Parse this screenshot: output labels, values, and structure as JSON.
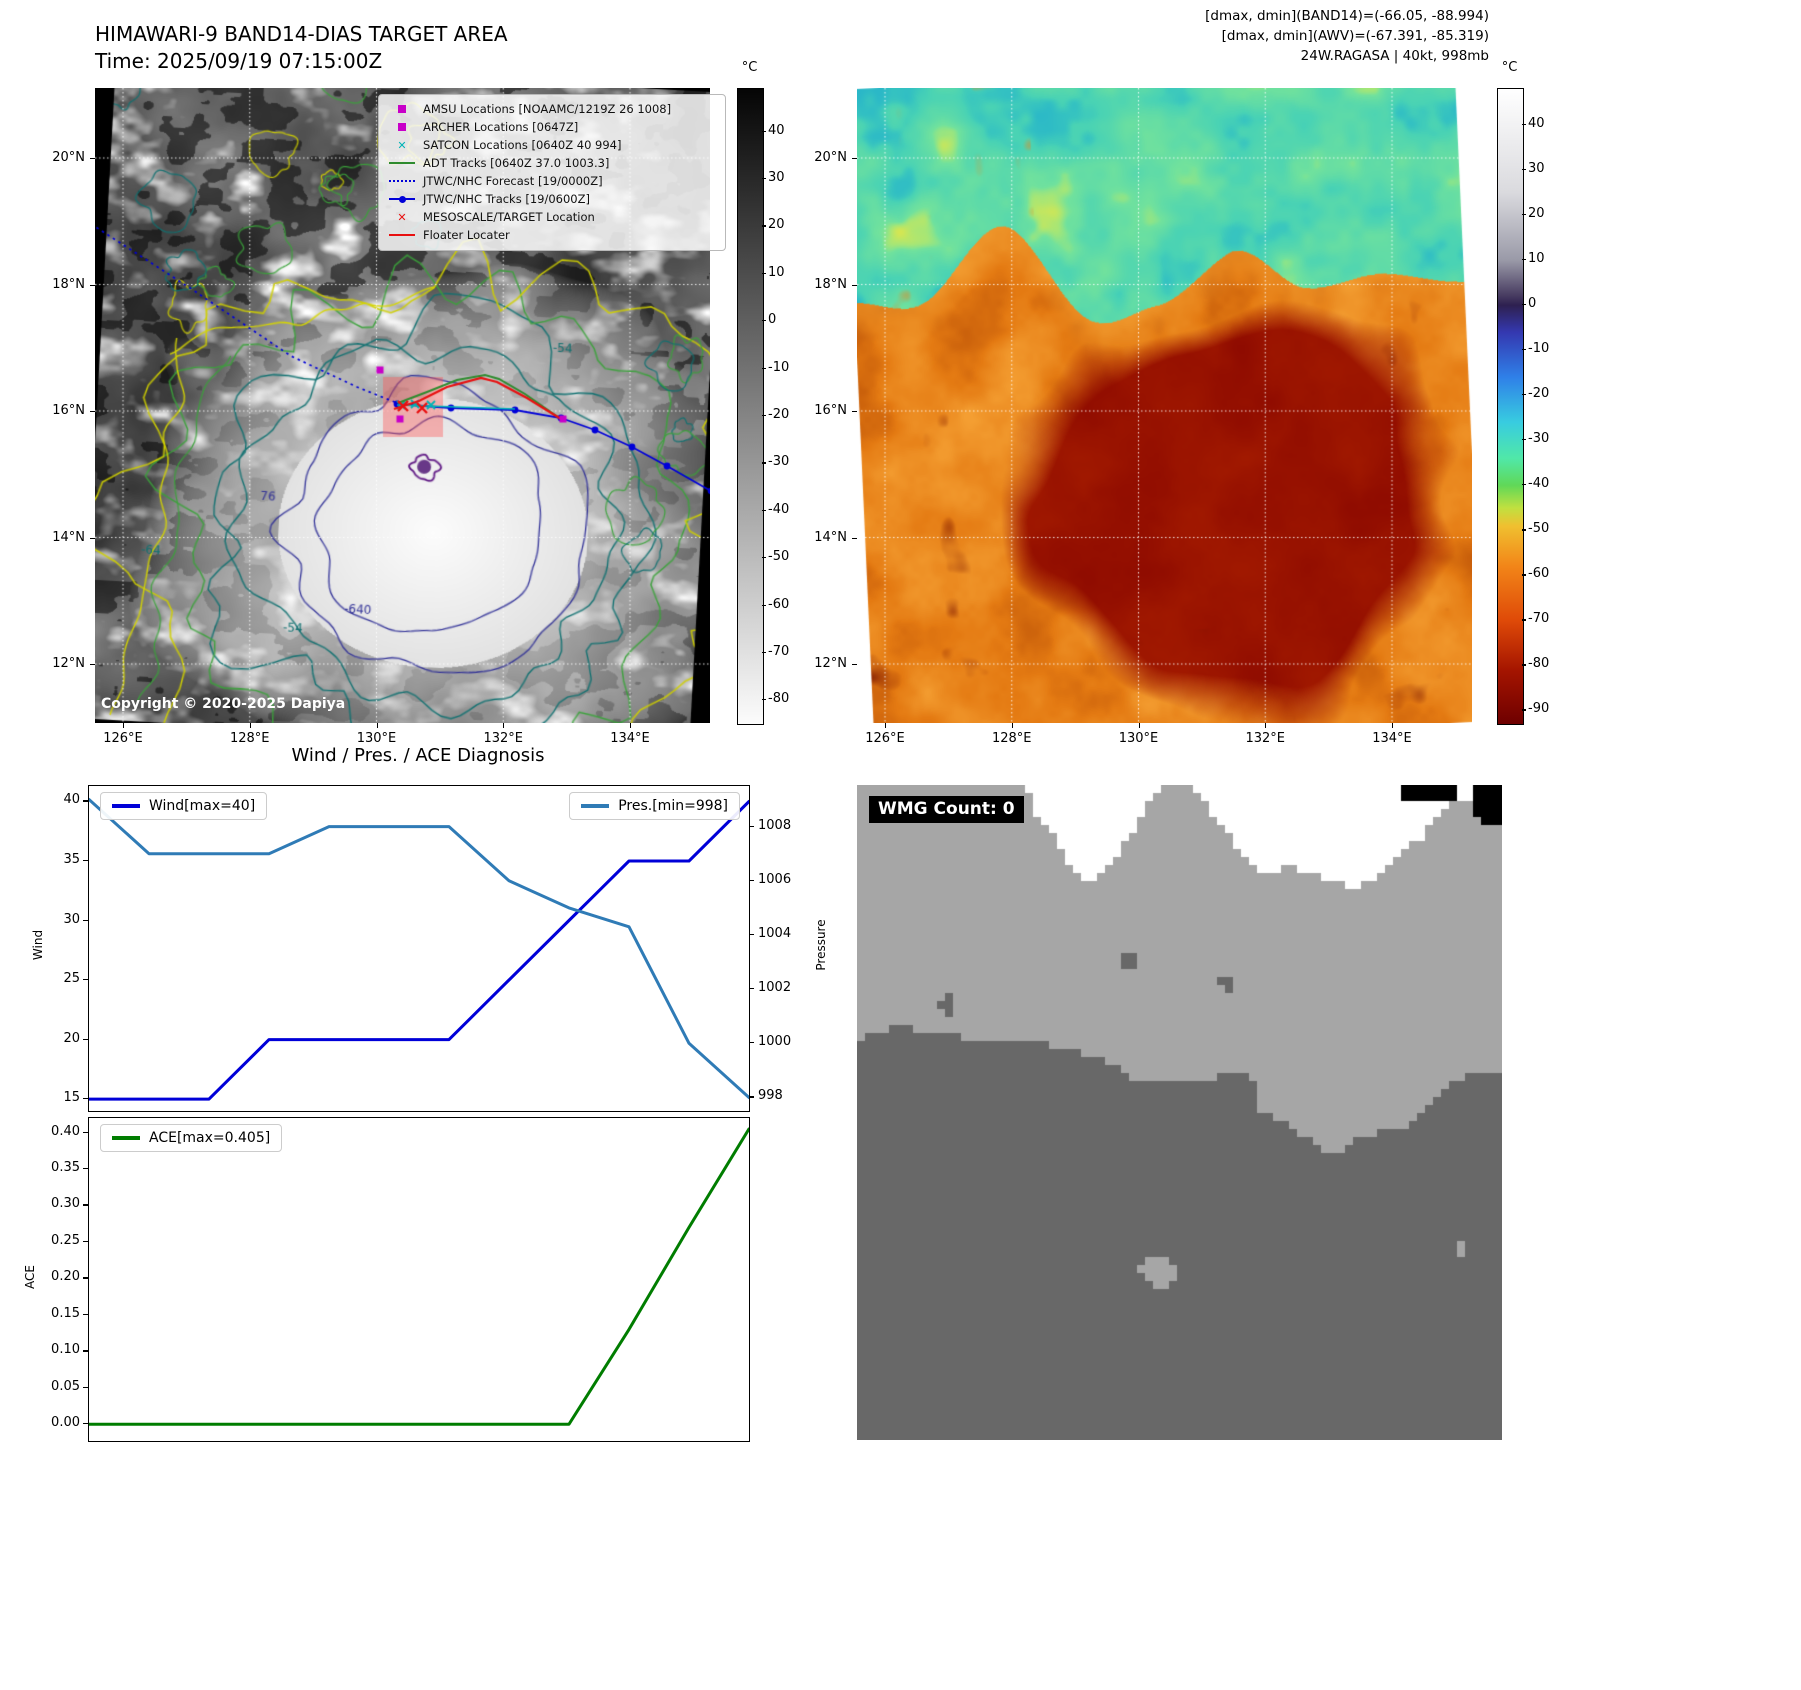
{
  "band14_panel": {
    "title": "HIMAWARI-9 BAND14-DIAS TARGET AREA",
    "subtitle": "Time: 2025/09/19 07:15:00Z",
    "copyright": "Copyright © 2020-2025 Dapiya",
    "colorbar_unit": "°C",
    "colorbar_ticks": [
      40,
      30,
      20,
      10,
      0,
      -10,
      -20,
      -30,
      -40,
      -50,
      -60,
      -70,
      -80
    ],
    "colorbar_range": [
      49,
      -85
    ],
    "colorbar_stops": [
      [
        49,
        "#050505"
      ],
      [
        -85,
        "#fcfcfc"
      ]
    ],
    "lat_ticks": [
      "20°N",
      "18°N",
      "16°N",
      "14°N",
      "12°N"
    ],
    "lon_ticks": [
      "126°E",
      "128°E",
      "130°E",
      "132°E",
      "134°E"
    ],
    "legend_items": [
      {
        "label": "AMSU Locations [NOAAMC/1219Z 26 1008]",
        "marker": "square",
        "color": "#c800c8"
      },
      {
        "label": "ARCHER Locations [0647Z]",
        "marker": "square",
        "color": "#c800c8"
      },
      {
        "label": "SATCON Locations [0640Z 40 994]",
        "marker": "x",
        "color": "#00b4b4"
      },
      {
        "label": "ADT Tracks [0640Z 37.0 1003.3]",
        "marker": "line",
        "color": "#2e8b2e"
      },
      {
        "label": "JTWC/NHC Forecast [19/0000Z]",
        "marker": "dotted",
        "color": "#0000d8"
      },
      {
        "label": "JTWC/NHC Tracks [19/0600Z]",
        "marker": "line-marker",
        "color": "#0000d8"
      },
      {
        "label": "MESOSCALE/TARGET Location",
        "marker": "x",
        "color": "#e81010"
      },
      {
        "label": "Floater Locater",
        "marker": "line",
        "color": "#e81010"
      }
    ],
    "contour_labels": [
      {
        "text": "-54",
        "color": "#0e7070"
      },
      {
        "text": "-54",
        "color": "#0e7070"
      },
      {
        "text": "-64",
        "color": "#0e7070"
      },
      {
        "text": "-640",
        "color": "#2e2e96"
      },
      {
        "text": "76",
        "color": "#2e2e96"
      }
    ]
  },
  "awv_panel": {
    "annotations": [
      "[dmax, dmin](BAND14)=(-66.05, -88.994)",
      "[dmax, dmin](AWV)=(-67.391, -85.319)",
      "24W.RAGASA | 40kt, 998mb"
    ],
    "colorbar_unit": "°C",
    "colorbar_ticks": [
      40,
      30,
      20,
      10,
      0,
      -10,
      -20,
      -30,
      -40,
      -50,
      -60,
      -70,
      -80,
      -90
    ],
    "colorbar_range": [
      48,
      -93
    ],
    "colorbar_stops": [
      [
        48,
        "#ffffff"
      ],
      [
        25,
        "#dadade"
      ],
      [
        10,
        "#9a9aa8"
      ],
      [
        2,
        "#463a60"
      ],
      [
        0,
        "#2e2050"
      ],
      [
        -6,
        "#3438b0"
      ],
      [
        -16,
        "#2f80e8"
      ],
      [
        -26,
        "#38cce0"
      ],
      [
        -34,
        "#50e8a8"
      ],
      [
        -40,
        "#60d858"
      ],
      [
        -45,
        "#c0e040"
      ],
      [
        -49,
        "#f0c030"
      ],
      [
        -58,
        "#f28518"
      ],
      [
        -70,
        "#df4a08"
      ],
      [
        -81,
        "#a51500"
      ],
      [
        -93,
        "#6e0000"
      ]
    ],
    "lat_ticks": [
      "20°N",
      "18°N",
      "16°N",
      "14°N",
      "12°N"
    ],
    "lon_ticks": [
      "126°E",
      "128°E",
      "130°E",
      "132°E",
      "134°E"
    ]
  },
  "diagnosis_panel": {
    "title": "Wind / Pres. / ACE Diagnosis"
  },
  "wmg_panel": {
    "label": "WMG Count: 0"
  },
  "chart_data": [
    {
      "type": "line",
      "title": "Wind / Pres. / ACE Diagnosis",
      "x": [
        0,
        1,
        2,
        3,
        4,
        5,
        6,
        7,
        8,
        9,
        10,
        11
      ],
      "series": [
        {
          "name": "Wind[max=40]",
          "axis": "left",
          "color": "#0000d8",
          "values": [
            15,
            15,
            15,
            20,
            20,
            20,
            20,
            25,
            30,
            35,
            35,
            40
          ]
        },
        {
          "name": "Pres.[min=998]",
          "axis": "right",
          "color": "#2f7bb6",
          "values": [
            1009,
            1007,
            1007,
            1007,
            1008,
            1008,
            1008,
            1006,
            1005,
            1004.3,
            1000,
            998
          ]
        }
      ],
      "left_axis": {
        "label": "Wind",
        "ticks": [
          15,
          20,
          25,
          30,
          35,
          40
        ],
        "range": [
          14,
          41.3
        ]
      },
      "right_axis": {
        "label": "Pressure",
        "ticks": [
          998,
          1000,
          1002,
          1004,
          1006,
          1008
        ],
        "range": [
          997.5,
          1009.5
        ]
      },
      "legend_position": {
        "wind": "upper-left",
        "pressure": "upper-right"
      }
    },
    {
      "type": "line",
      "x": [
        0,
        1,
        2,
        3,
        4,
        5,
        6,
        7,
        8,
        9,
        10,
        11
      ],
      "series": [
        {
          "name": "ACE[max=0.405]",
          "axis": "left",
          "color": "#007d00",
          "values": [
            0,
            0,
            0,
            0,
            0,
            0,
            0,
            0,
            0,
            0.13,
            0.27,
            0.405
          ]
        }
      ],
      "left_axis": {
        "label": "ACE",
        "ticks": [
          0,
          0.05,
          0.1,
          0.15,
          0.2,
          0.25,
          0.3,
          0.35,
          0.4
        ],
        "range": [
          -0.023,
          0.42
        ]
      },
      "legend_position": {
        "ace": "upper-left"
      }
    }
  ]
}
